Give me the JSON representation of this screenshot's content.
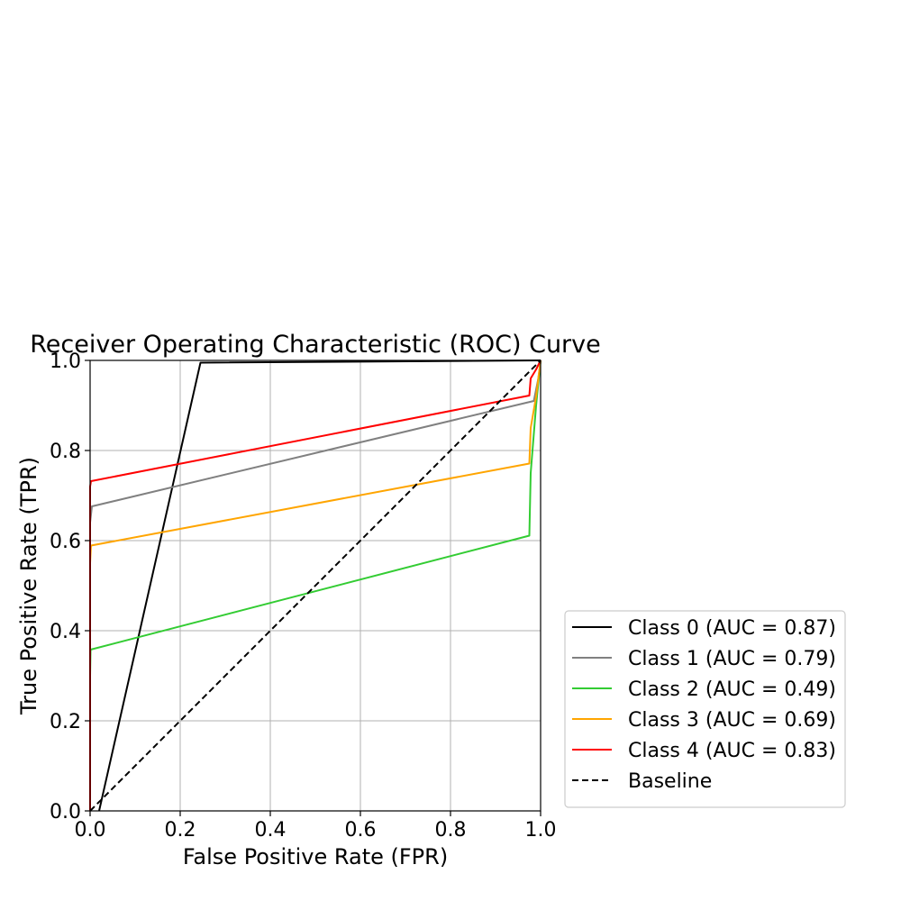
{
  "chart_data": {
    "type": "line",
    "title": "Receiver Operating Characteristic (ROC) Curve",
    "xlabel": "False Positive Rate (FPR)",
    "ylabel": "True Positive Rate (TPR)",
    "xlim": [
      0.0,
      1.0
    ],
    "ylim": [
      0.0,
      1.0
    ],
    "xticks": [
      "0.0",
      "0.2",
      "0.4",
      "0.6",
      "0.8",
      "1.0"
    ],
    "yticks": [
      "0.0",
      "0.2",
      "0.4",
      "0.6",
      "0.8",
      "1.0"
    ],
    "grid": true,
    "legend_position": "outside lower right",
    "series": [
      {
        "name": "Class 0 (AUC = 0.87)",
        "color": "#000000",
        "dashed": false,
        "points": [
          [
            0.02,
            0.0
          ],
          [
            0.245,
            0.995
          ],
          [
            1.0,
            1.0
          ]
        ]
      },
      {
        "name": "Class 1 (AUC = 0.79)",
        "color": "#808080",
        "dashed": false,
        "points": [
          [
            0.0,
            0.0
          ],
          [
            0.0,
            0.64
          ],
          [
            0.004,
            0.676
          ],
          [
            0.985,
            0.91
          ],
          [
            0.995,
            0.96
          ],
          [
            1.0,
            1.0
          ]
        ]
      },
      {
        "name": "Class 2 (AUC = 0.49)",
        "color": "#33cc33",
        "dashed": false,
        "points": [
          [
            0.0,
            0.0
          ],
          [
            0.0,
            0.3
          ],
          [
            0.001,
            0.358
          ],
          [
            0.975,
            0.611
          ],
          [
            0.978,
            0.75
          ],
          [
            0.99,
            0.9
          ],
          [
            1.0,
            1.0
          ]
        ]
      },
      {
        "name": "Class 3 (AUC = 0.69)",
        "color": "#ffa500",
        "dashed": false,
        "points": [
          [
            0.0,
            0.0
          ],
          [
            0.0,
            0.55
          ],
          [
            0.002,
            0.589
          ],
          [
            0.975,
            0.771
          ],
          [
            0.978,
            0.85
          ],
          [
            0.99,
            0.92
          ],
          [
            1.0,
            1.0
          ]
        ]
      },
      {
        "name": "Class 4 (AUC = 0.83)",
        "color": "#ff0000",
        "dashed": false,
        "points": [
          [
            0.0,
            0.0
          ],
          [
            0.0,
            0.72
          ],
          [
            0.002,
            0.732
          ],
          [
            0.975,
            0.922
          ],
          [
            0.978,
            0.96
          ],
          [
            0.99,
            0.98
          ],
          [
            1.0,
            1.0
          ]
        ]
      },
      {
        "name": "Baseline",
        "color": "#000000",
        "dashed": true,
        "points": [
          [
            0.0,
            0.0
          ],
          [
            1.0,
            1.0
          ]
        ]
      }
    ]
  }
}
